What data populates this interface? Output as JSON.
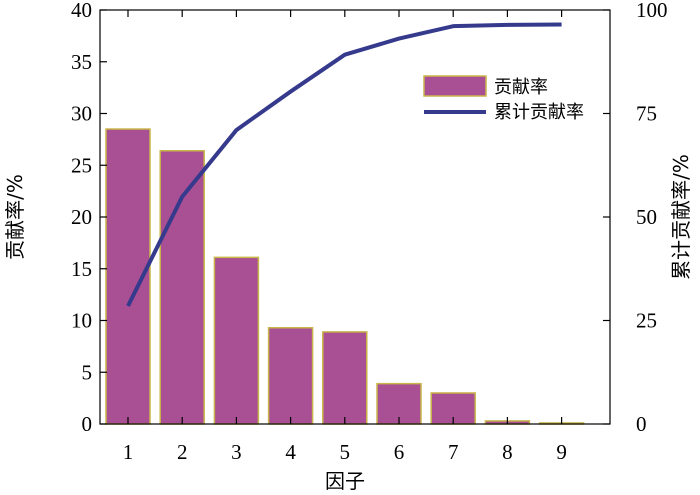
{
  "chart_data": {
    "type": "bar",
    "categories": [
      "1",
      "2",
      "3",
      "4",
      "5",
      "6",
      "7",
      "8",
      "9"
    ],
    "series": [
      {
        "name": "贡献率",
        "type": "bar",
        "axis": "left",
        "values": [
          28.5,
          26.4,
          16.1,
          9.3,
          8.9,
          3.9,
          3.0,
          0.3,
          0.1
        ],
        "color": "#a94f93",
        "edge_color": "#c9b64a"
      },
      {
        "name": "累计贡献率",
        "type": "line",
        "axis": "right",
        "values": [
          28.5,
          54.9,
          71.0,
          80.3,
          89.2,
          93.1,
          96.1,
          96.4,
          96.5
        ],
        "color": "#353a8c"
      }
    ],
    "xlabel": "因子",
    "ylabel": "贡献率/%",
    "y2label": "累计贡献率/%",
    "ylim": [
      0,
      40
    ],
    "y2lim": [
      0,
      100
    ],
    "yticks": [
      "0",
      "5",
      "10",
      "15",
      "20",
      "25",
      "30",
      "35",
      "40"
    ],
    "y2ticks": [
      "0",
      "25",
      "50",
      "75",
      "100"
    ],
    "legend_position": "top-right",
    "grid": false
  }
}
